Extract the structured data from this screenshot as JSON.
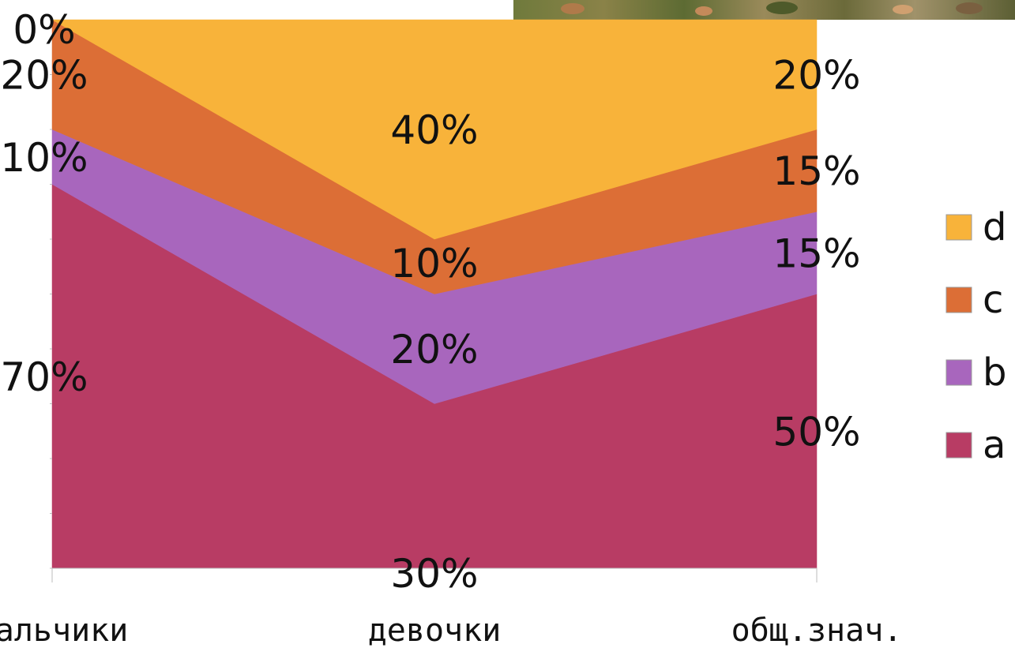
{
  "chart_data": {
    "type": "area",
    "stacked": true,
    "normalized_percent": true,
    "categories": [
      "мальчики",
      "девочки",
      "общ.знач."
    ],
    "series": [
      {
        "name": "a",
        "values": [
          70,
          30,
          50
        ],
        "labels": [
          "70%",
          "30%",
          "50%"
        ],
        "color": "#b83c64"
      },
      {
        "name": "b",
        "values": [
          10,
          20,
          15
        ],
        "labels": [
          "10%",
          "20%",
          "15%"
        ],
        "color": "#a866bd"
      },
      {
        "name": "c",
        "values": [
          20,
          10,
          15
        ],
        "labels": [
          "20%",
          "10%",
          "15%"
        ],
        "color": "#dc6e36"
      },
      {
        "name": "d",
        "values": [
          0,
          40,
          20
        ],
        "labels": [
          "0%",
          "40%",
          "20%"
        ],
        "color": "#f8b33a"
      }
    ],
    "title": "",
    "xlabel": "",
    "ylabel": "",
    "ylim": [
      0,
      100
    ],
    "grid": false,
    "legend_position": "right",
    "legend_order": [
      "d",
      "c",
      "b",
      "a"
    ]
  }
}
